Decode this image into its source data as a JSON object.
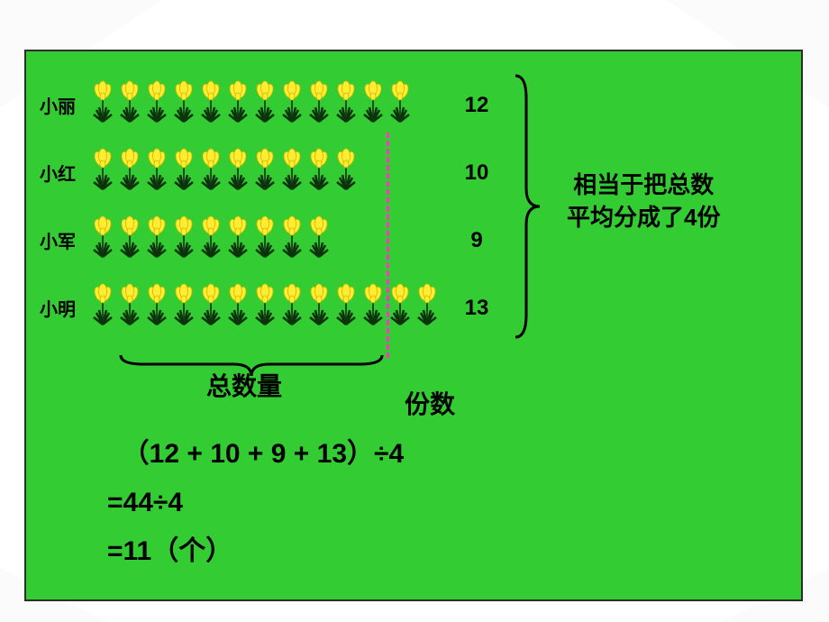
{
  "background_color": "#ffffff",
  "box": {
    "fill": "#33cc33",
    "border": "#2d2d2d",
    "decorative_triangles_color": "#d9d9d9"
  },
  "flower_icon": {
    "petal_color": "#ffec33",
    "petal_outline": "#c9b800",
    "stem_color": "#1a4d1a",
    "leaf_color": "#0d330d"
  },
  "average_line": {
    "color": "#ff33cc",
    "position_count": 11
  },
  "text_color": "#000000",
  "rows": [
    {
      "name": "小丽",
      "count": 12
    },
    {
      "name": "小红",
      "count": 10
    },
    {
      "name": "小军",
      "count": 9
    },
    {
      "name": "小明",
      "count": 13
    }
  ],
  "labels": {
    "total": "总数量",
    "parts": "份数",
    "side_line1": "相当于把总数",
    "side_line2": "平均分成了4份"
  },
  "calculation": {
    "line1": "（12 + 10 + 9 + 13）÷4",
    "line2": "=44÷4",
    "line3": "=11（个）"
  },
  "font": {
    "label_size_pt": 20,
    "count_size_pt": 24,
    "side_size_pt": 26,
    "zong_size_pt": 28,
    "calc_size_pt": 30,
    "weight": "bold"
  },
  "curly_color": "#000000"
}
